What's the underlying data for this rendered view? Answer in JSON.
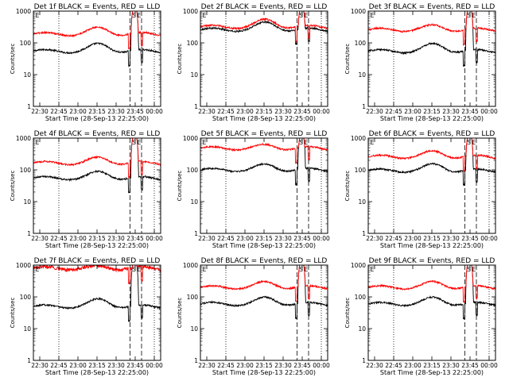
{
  "chart_data": [
    {
      "type": "line",
      "title": "Det 1f BLACK = Events, RED = LLD",
      "xlabel": "Start Time (28-Sep-13 22:25:00)",
      "ylabel": "Counts/sec",
      "x_ticks": [
        "22:30",
        "22:45",
        "23:00",
        "23:15",
        "23:30",
        "23:45",
        "00:00"
      ],
      "y_ticks": [
        "1",
        "10",
        "100",
        "1000"
      ],
      "y_scale": "log",
      "ylim": [
        1,
        1000
      ],
      "markers": [
        "E",
        "S",
        "E"
      ],
      "series": [
        {
          "color": "#000000",
          "base": 55,
          "hump": 1.6
        },
        {
          "color": "#ff0000",
          "base": 190,
          "hump": 1.5
        }
      ]
    },
    {
      "type": "line",
      "title": "Det 2f BLACK = Events, RED = LLD",
      "xlabel": "Start Time (28-Sep-13 22:25:00)",
      "ylabel": "Counts/sec",
      "x_ticks": [
        "22:30",
        "22:45",
        "23:00",
        "23:15",
        "23:30",
        "23:45",
        "00:00"
      ],
      "y_ticks": [
        "1",
        "10",
        "100",
        "1000"
      ],
      "y_scale": "log",
      "ylim": [
        1,
        1000
      ],
      "markers": [
        "E",
        "S",
        "E"
      ],
      "series": [
        {
          "color": "#000000",
          "base": 260,
          "hump": 1.6
        },
        {
          "color": "#ff0000",
          "base": 320,
          "hump": 1.6
        }
      ]
    },
    {
      "type": "line",
      "title": "Det 3f BLACK = Events, RED = LLD",
      "xlabel": "Start Time (28-Sep-13 22:25:00)",
      "ylabel": "Counts/sec",
      "x_ticks": [
        "22:30",
        "22:45",
        "23:00",
        "23:15",
        "23:30",
        "23:45",
        "00:00"
      ],
      "y_ticks": [
        "1",
        "10",
        "100",
        "1000"
      ],
      "y_scale": "log",
      "ylim": [
        1,
        1000
      ],
      "markers": [
        "E",
        "S",
        "E"
      ],
      "series": [
        {
          "color": "#000000",
          "base": 55,
          "hump": 1.6
        },
        {
          "color": "#ff0000",
          "base": 260,
          "hump": 1.3
        }
      ]
    },
    {
      "type": "line",
      "title": "Det 4f BLACK = Events, RED = LLD",
      "xlabel": "Start Time (28-Sep-13 22:25:00)",
      "ylabel": "Counts/sec",
      "x_ticks": [
        "22:30",
        "22:45",
        "23:00",
        "23:15",
        "23:30",
        "23:45",
        "00:00"
      ],
      "y_ticks": [
        "1",
        "10",
        "100",
        "1000"
      ],
      "y_scale": "log",
      "ylim": [
        1,
        1000
      ],
      "markers": [
        "E",
        "S",
        "E"
      ],
      "series": [
        {
          "color": "#000000",
          "base": 55,
          "hump": 1.5
        },
        {
          "color": "#ff0000",
          "base": 165,
          "hump": 1.4
        }
      ]
    },
    {
      "type": "line",
      "title": "Det 5f BLACK = Events, RED = LLD",
      "xlabel": "Start Time (28-Sep-13 22:25:00)",
      "ylabel": "Counts/sec",
      "x_ticks": [
        "22:30",
        "22:45",
        "23:00",
        "23:15",
        "23:30",
        "23:45",
        "00:00"
      ],
      "y_ticks": [
        "1",
        "10",
        "100",
        "1000"
      ],
      "y_scale": "log",
      "ylim": [
        1,
        1000
      ],
      "markers": [
        "E",
        "S",
        "E"
      ],
      "series": [
        {
          "color": "#000000",
          "base": 100,
          "hump": 1.4
        },
        {
          "color": "#ff0000",
          "base": 480,
          "hump": 1.2
        }
      ]
    },
    {
      "type": "line",
      "title": "Det 6f BLACK = Events, RED = LLD",
      "xlabel": "Start Time (28-Sep-13 22:25:00)",
      "ylabel": "Counts/sec",
      "x_ticks": [
        "22:30",
        "22:45",
        "23:00",
        "23:15",
        "23:30",
        "23:45",
        "00:00"
      ],
      "y_ticks": [
        "1",
        "10",
        "100",
        "1000"
      ],
      "y_scale": "log",
      "ylim": [
        1,
        1000
      ],
      "markers": [
        "E",
        "S",
        "E"
      ],
      "series": [
        {
          "color": "#000000",
          "base": 95,
          "hump": 1.5
        },
        {
          "color": "#ff0000",
          "base": 260,
          "hump": 1.4
        }
      ]
    },
    {
      "type": "line",
      "title": "Det 7f BLACK = Events, RED = LLD",
      "xlabel": "Start Time (28-Sep-13 22:25:00)",
      "ylabel": "Counts/sec",
      "x_ticks": [
        "22:30",
        "22:45",
        "23:00",
        "23:15",
        "23:30",
        "23:45",
        "00:00"
      ],
      "y_ticks": [
        "1",
        "10",
        "100",
        "1000"
      ],
      "y_scale": "log",
      "ylim": [
        1,
        1000
      ],
      "markers": [
        "E",
        "S",
        "E"
      ],
      "series": [
        {
          "color": "#000000",
          "base": 50,
          "hump": 1.6
        },
        {
          "color": "#ff0000",
          "base": 800,
          "hump": 1.1
        }
      ]
    },
    {
      "type": "line",
      "title": "Det 8f BLACK = Events, RED = LLD",
      "xlabel": "Start Time (28-Sep-13 22:25:00)",
      "ylabel": "Counts/sec",
      "x_ticks": [
        "22:30",
        "22:45",
        "23:00",
        "23:15",
        "23:30",
        "23:45",
        "00:00"
      ],
      "y_ticks": [
        "1",
        "10",
        "100",
        "1000"
      ],
      "y_scale": "log",
      "ylim": [
        1,
        1000
      ],
      "markers": [
        "E",
        "S",
        "E"
      ],
      "series": [
        {
          "color": "#000000",
          "base": 60,
          "hump": 1.5
        },
        {
          "color": "#ff0000",
          "base": 200,
          "hump": 1.4
        }
      ]
    },
    {
      "type": "line",
      "title": "Det 9f BLACK = Events, RED = LLD",
      "xlabel": "Start Time (28-Sep-13 22:25:00)",
      "ylabel": "Counts/sec",
      "x_ticks": [
        "22:30",
        "22:45",
        "23:00",
        "23:15",
        "23:30",
        "23:45",
        "00:00"
      ],
      "y_ticks": [
        "1",
        "10",
        "100",
        "1000"
      ],
      "y_scale": "log",
      "ylim": [
        1,
        1000
      ],
      "markers": [
        "E",
        "S",
        "E"
      ],
      "series": [
        {
          "color": "#000000",
          "base": 60,
          "hump": 1.5
        },
        {
          "color": "#ff0000",
          "base": 200,
          "hump": 1.4
        }
      ]
    }
  ]
}
